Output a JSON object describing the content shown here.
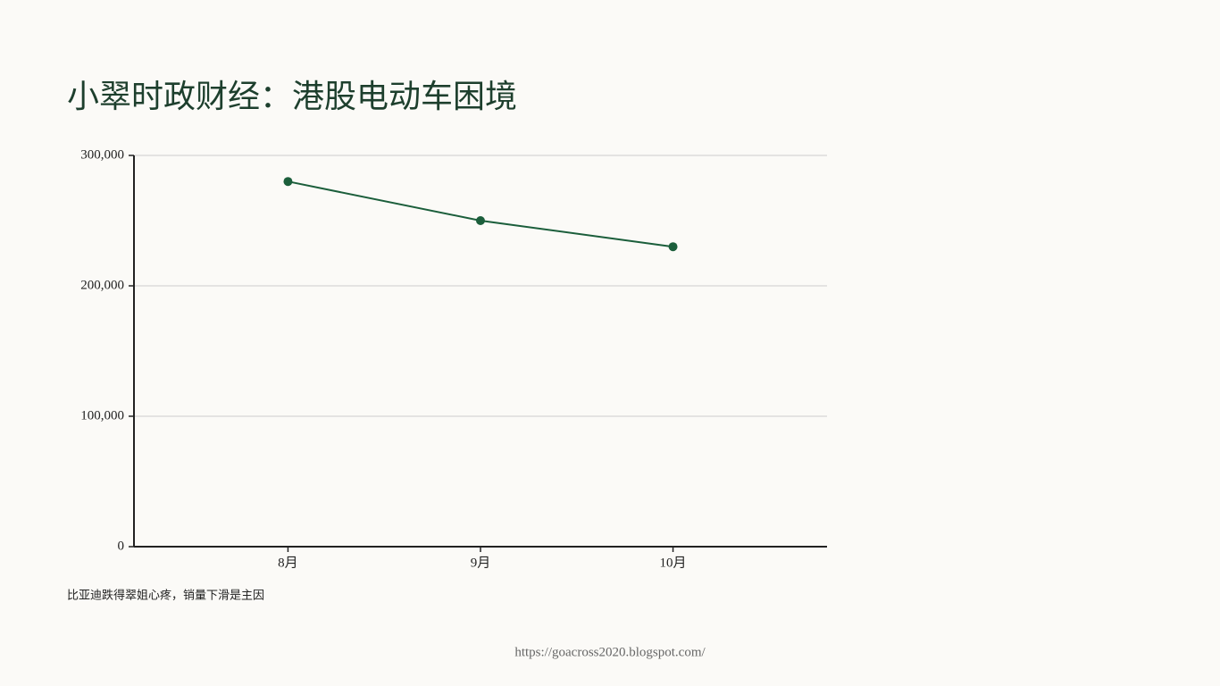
{
  "chart_data": {
    "type": "line",
    "title": "小翠时政财经：港股电动车困境",
    "caption": "比亚迪跌得翠姐心疼，销量下滑是主因",
    "source": "https://goacross2020.blogspot.com/",
    "categories": [
      "8月",
      "9月",
      "10月"
    ],
    "values": [
      280000,
      250000,
      230000
    ],
    "color": "#1b5e3b",
    "ylim": [
      0,
      300000
    ],
    "yticks": [
      0,
      {
        "value": 100000,
        "label": "100,000"
      },
      {
        "value": 200000,
        "label": "200,000"
      },
      {
        "value": 300000,
        "label": "300,000"
      }
    ],
    "grid": true
  }
}
